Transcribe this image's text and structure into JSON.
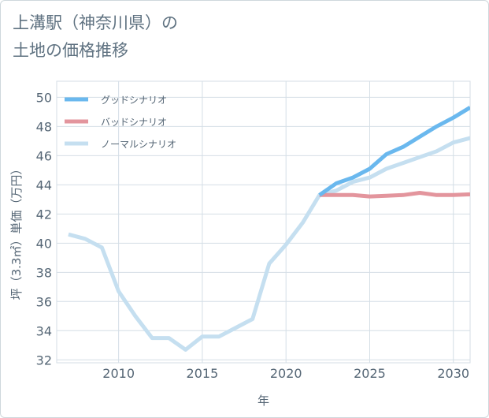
{
  "title": {
    "line1": "上溝駅（神奈川県）の",
    "line2": "土地の価格推移"
  },
  "chart_data": {
    "type": "line",
    "xlabel": "年",
    "ylabel": "坪（3.3㎡）単価（万円）",
    "xlim": [
      2006.3,
      2031
    ],
    "ylim": [
      31.8,
      51.1
    ],
    "x_ticks": [
      "2010",
      "2015",
      "2020",
      "2025",
      "2030"
    ],
    "y_ticks": [
      "32",
      "34",
      "36",
      "38",
      "40",
      "42",
      "44",
      "46",
      "48",
      "50"
    ],
    "grid": true,
    "legend_position": "top-left",
    "series": [
      {
        "name": "グッドシナリオ",
        "color": "#6ab8ee",
        "x": [
          2022,
          2023,
          2024,
          2025,
          2026,
          2027,
          2028,
          2029,
          2030,
          2031
        ],
        "y": [
          43.3,
          44.1,
          44.5,
          45.1,
          46.1,
          46.6,
          47.3,
          48.0,
          48.6,
          49.3
        ]
      },
      {
        "name": "バッドシナリオ",
        "color": "#e3959d",
        "x": [
          2022,
          2023,
          2024,
          2025,
          2026,
          2027,
          2028,
          2029,
          2030,
          2031
        ],
        "y": [
          43.3,
          43.3,
          43.3,
          43.2,
          43.25,
          43.3,
          43.45,
          43.3,
          43.3,
          43.35
        ]
      },
      {
        "name": "ノーマルシナリオ",
        "color": "#c5dff0",
        "x": [
          2007,
          2008,
          2009,
          2010,
          2011,
          2012,
          2013,
          2014,
          2015,
          2016,
          2017,
          2018,
          2019,
          2020,
          2021,
          2022,
          2023,
          2024,
          2025,
          2026,
          2027,
          2028,
          2029,
          2030,
          2031
        ],
        "y": [
          40.6,
          40.3,
          39.7,
          36.7,
          35.0,
          33.5,
          33.5,
          32.7,
          33.6,
          33.6,
          34.2,
          34.8,
          38.6,
          39.9,
          41.4,
          43.3,
          43.6,
          44.2,
          44.5,
          45.1,
          45.5,
          45.9,
          46.3,
          46.9,
          47.2
        ]
      }
    ]
  }
}
